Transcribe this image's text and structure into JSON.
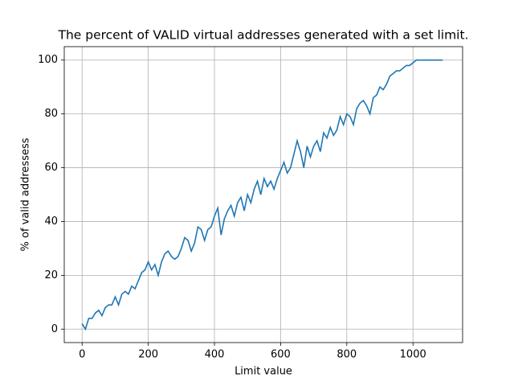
{
  "chart_data": {
    "type": "line",
    "title": "The percent of VALID virtual addresses generated with a set limit.",
    "xlabel": "Limit value",
    "ylabel": "% of valid addressess",
    "x": [
      0,
      10,
      20,
      30,
      40,
      50,
      60,
      70,
      80,
      90,
      100,
      110,
      120,
      130,
      140,
      150,
      160,
      170,
      180,
      190,
      200,
      210,
      220,
      230,
      240,
      250,
      260,
      270,
      280,
      290,
      300,
      310,
      320,
      330,
      340,
      350,
      360,
      370,
      380,
      390,
      400,
      410,
      420,
      430,
      440,
      450,
      460,
      470,
      480,
      490,
      500,
      510,
      520,
      530,
      540,
      550,
      560,
      570,
      580,
      590,
      600,
      610,
      620,
      630,
      640,
      650,
      660,
      670,
      680,
      690,
      700,
      710,
      720,
      730,
      740,
      750,
      760,
      770,
      780,
      790,
      800,
      810,
      820,
      830,
      840,
      850,
      860,
      870,
      880,
      890,
      900,
      910,
      920,
      930,
      940,
      950,
      960,
      970,
      980,
      990,
      1000,
      1010,
      1020,
      1030,
      1040,
      1050,
      1060,
      1070,
      1080,
      1090
    ],
    "values": [
      2,
      0,
      4,
      4,
      6,
      7,
      5,
      8,
      9,
      9,
      12,
      9,
      13,
      14,
      13,
      16,
      15,
      18,
      21,
      22,
      25,
      22,
      24,
      20,
      25,
      28,
      29,
      27,
      26,
      27,
      30,
      34,
      33,
      29,
      32,
      38,
      37,
      33,
      37,
      38,
      42,
      45,
      35,
      41,
      44,
      46,
      42,
      47,
      49,
      44,
      50,
      47,
      52,
      55,
      50,
      56,
      53,
      55,
      52,
      56,
      59,
      62,
      58,
      60,
      65,
      70,
      66,
      60,
      68,
      64,
      68,
      70,
      66,
      73,
      71,
      75,
      72,
      74,
      79,
      76,
      80,
      79,
      76,
      82,
      84,
      85,
      83,
      80,
      86,
      87,
      90,
      89,
      91,
      94,
      95,
      96,
      96,
      97,
      98,
      98,
      99,
      100,
      100,
      100,
      100,
      100,
      100,
      100,
      100,
      100
    ],
    "color": "#1f77b4",
    "xlim": [
      -54,
      1150
    ],
    "ylim": [
      -5,
      105
    ],
    "xticks": [
      0,
      200,
      400,
      600,
      800,
      1000
    ],
    "yticks": [
      0,
      20,
      40,
      60,
      80,
      100
    ],
    "grid": true
  }
}
